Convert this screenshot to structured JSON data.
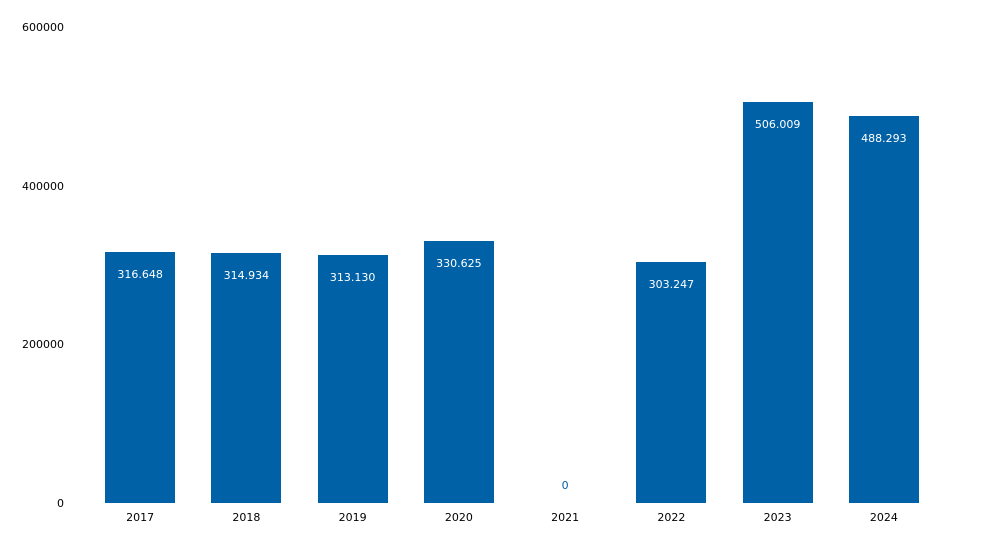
{
  "chart_data": {
    "type": "bar",
    "title": "",
    "xlabel": "",
    "ylabel": "",
    "categories": [
      "2017",
      "2018",
      "2019",
      "2020",
      "2021",
      "2022",
      "2023",
      "2024"
    ],
    "values": [
      316648,
      314934,
      313130,
      330625,
      0,
      303247,
      506009,
      488293
    ],
    "value_labels": [
      "316.648",
      "314.934",
      "313.130",
      "330.625",
      "0",
      "303.247",
      "506.009",
      "488.293"
    ],
    "ylim": [
      0,
      600000
    ],
    "yticks": [
      {
        "value": 0,
        "label": "0"
      },
      {
        "value": 200000,
        "label": "200000"
      },
      {
        "value": 400000,
        "label": "400000"
      },
      {
        "value": 600000,
        "label": "600000"
      }
    ],
    "grid": false,
    "legend": false,
    "colors": {
      "bar": "#0061A6",
      "value_label_inside": "#FFFFFF",
      "value_label_zero": "#0061A6",
      "axis_text": "#000000",
      "background": "#FFFFFF"
    }
  }
}
